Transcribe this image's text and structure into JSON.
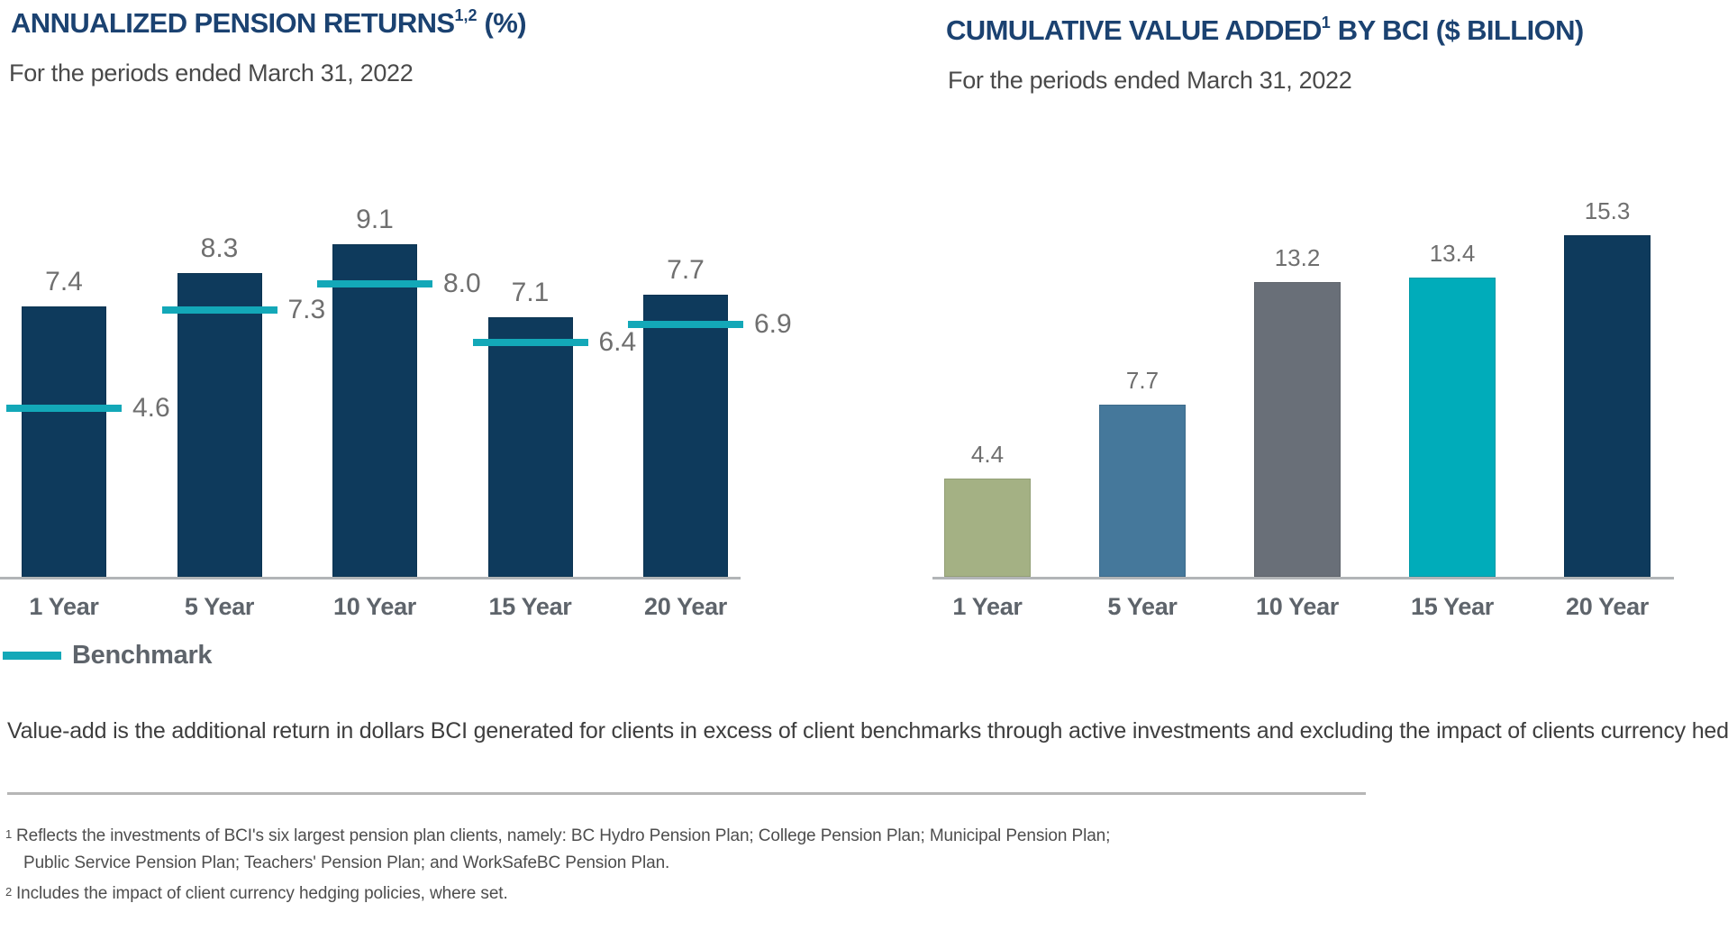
{
  "charts": [
    {
      "id": "annualized-pension-returns",
      "title_main": "ANNUALIZED PENSION RETURNS",
      "title_sup": "1,2",
      "title_suffix": " (%)",
      "subtitle": "For the periods ended March 31, 2022",
      "chart_data": {
        "type": "bar",
        "categories": [
          "1 Year",
          "5 Year",
          "10 Year",
          "15 Year",
          "20 Year"
        ],
        "series": [
          {
            "name": "Annualized pension return (%)",
            "values": [
              7.4,
              8.3,
              9.1,
              7.1,
              7.7
            ]
          },
          {
            "name": "Benchmark",
            "values": [
              4.6,
              7.3,
              8.0,
              6.4,
              6.9
            ]
          }
        ],
        "title": "ANNUALIZED PENSION RETURNS (%)",
        "xlabel": "",
        "ylabel": "",
        "ylim": [
          0,
          11
        ],
        "grid": false,
        "value_labels": true,
        "legend_position": "bottom-left",
        "bar_color": "#0e3a5c",
        "benchmark_color": "#13a8b8"
      },
      "legend": {
        "label": "Benchmark",
        "color": "#13a8b8"
      }
    },
    {
      "id": "cumulative-value-added",
      "title_main": "CUMULATIVE VALUE ADDED",
      "title_sup": "1",
      "title_suffix": " BY BCI ($ BILLION)",
      "subtitle": "For the periods ended March 31, 2022",
      "chart_data": {
        "type": "bar",
        "categories": [
          "1 Year",
          "5 Year",
          "10 Year",
          "15 Year",
          "20 Year"
        ],
        "values": [
          4.4,
          7.7,
          13.2,
          13.4,
          15.3
        ],
        "title": "CUMULATIVE VALUE ADDED BY BCI ($ BILLION)",
        "xlabel": "",
        "ylabel": "",
        "ylim": [
          0,
          16.5
        ],
        "grid": false,
        "value_labels": true,
        "bar_colors": [
          "#a4b184",
          "#45789b",
          "#696f78",
          "#00acba",
          "#0e3a5c"
        ]
      }
    }
  ],
  "footer": {
    "description_lines": [
      "Value-add is the additional return in dollars BCI generated for clients in excess of client benchmarks through active",
      "investments and excluding the impact of clients currency hedging policies, after all costs and fees."
    ],
    "footnotes": [
      {
        "marker": "1",
        "lines": [
          "Reflects the investments of BCI's six largest pension plan clients, namely: BC Hydro Pension Plan; College Pension Plan; Municipal Pension Plan;",
          "Public Service Pension Plan; Teachers' Pension Plan; and WorkSafeBC Pension Plan."
        ]
      },
      {
        "marker": "2",
        "lines": [
          "Includes the impact of client currency hedging policies, where set."
        ]
      }
    ]
  }
}
